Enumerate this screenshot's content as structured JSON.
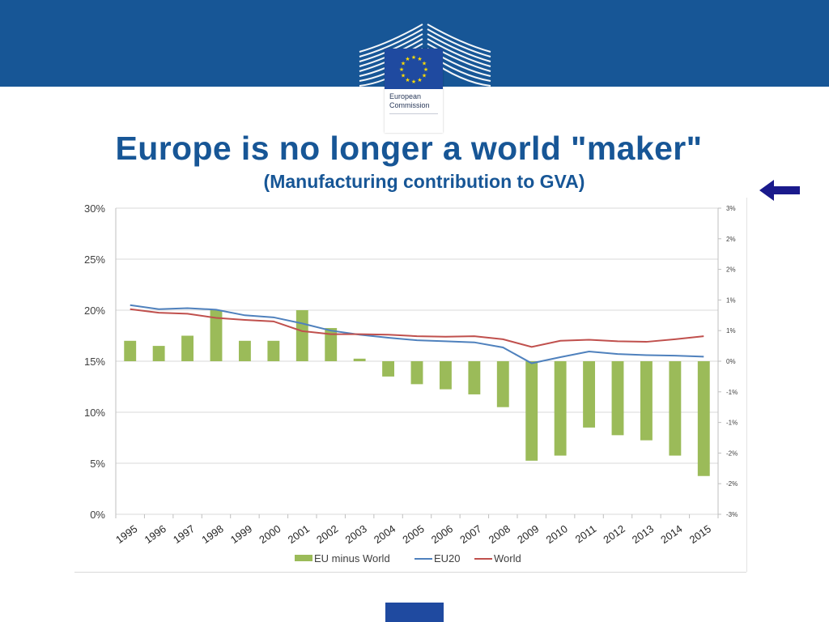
{
  "header": {
    "logo_line1": "European",
    "logo_line2": "Commission"
  },
  "title": "Europe is no longer a world \"maker\"",
  "subtitle": "(Manufacturing contribution to GVA)",
  "colors": {
    "band": "#175696",
    "title": "#175696",
    "bars": "#9bbb59",
    "eu20": "#4f81bd",
    "world": "#c0504d"
  },
  "chart_data": {
    "type": "bar",
    "categories": [
      "1995",
      "1996",
      "1997",
      "1998",
      "1999",
      "2000",
      "2001",
      "2002",
      "2003",
      "2004",
      "2005",
      "2006",
      "2007",
      "2008",
      "2009",
      "2010",
      "2011",
      "2012",
      "2013",
      "2014",
      "2015"
    ],
    "left_axis": {
      "ticks": [
        "0%",
        "5%",
        "10%",
        "15%",
        "20%",
        "25%",
        "30%"
      ],
      "ylim": [
        0,
        30
      ]
    },
    "right_axis": {
      "ticks": [
        "3%",
        "2%",
        "2%",
        "1%",
        "1%",
        "0%",
        "-1%",
        "-1%",
        "-2%",
        "-2%",
        "-3%"
      ],
      "ylim": [
        -3,
        3
      ]
    },
    "series": [
      {
        "name": "EU minus World",
        "type": "bar",
        "axis": "right",
        "values": [
          0.4,
          0.3,
          0.5,
          1.0,
          0.4,
          0.4,
          1.0,
          0.65,
          0.05,
          -0.3,
          -0.45,
          -0.55,
          -0.65,
          -0.9,
          -1.95,
          -1.85,
          -1.3,
          -1.45,
          -1.55,
          -1.85,
          -2.25
        ]
      },
      {
        "name": "EU20",
        "type": "line",
        "axis": "left",
        "values": [
          20.5,
          20.1,
          20.2,
          20.05,
          19.5,
          19.3,
          18.7,
          18.0,
          17.6,
          17.3,
          17.05,
          16.95,
          16.85,
          16.35,
          14.8,
          15.4,
          15.95,
          15.7,
          15.6,
          15.55,
          15.45
        ]
      },
      {
        "name": "World",
        "type": "line",
        "axis": "left",
        "values": [
          20.1,
          19.75,
          19.65,
          19.25,
          19.05,
          18.9,
          17.95,
          17.65,
          17.65,
          17.6,
          17.45,
          17.4,
          17.45,
          17.15,
          16.4,
          17.0,
          17.1,
          16.95,
          16.9,
          17.15,
          17.45
        ]
      }
    ],
    "legend": {
      "position": "bottom"
    },
    "grid": true
  }
}
